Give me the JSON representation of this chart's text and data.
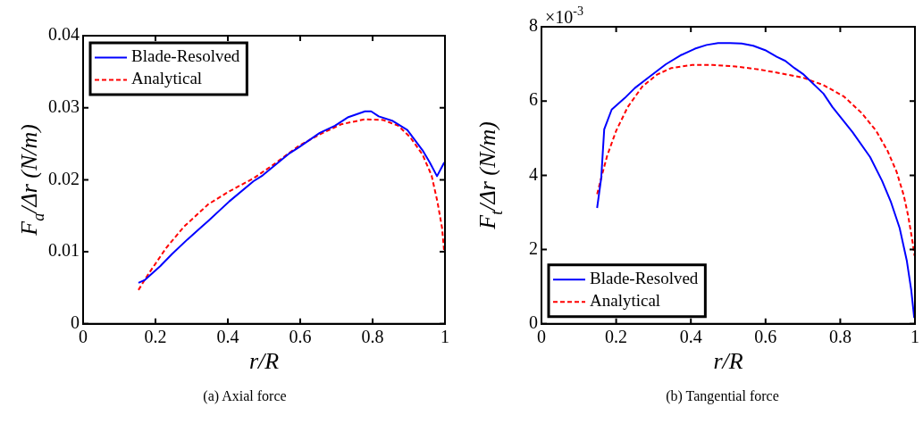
{
  "chart_data": [
    {
      "type": "line",
      "title": "(a) Axial force",
      "xlabel": "r/R",
      "ylabel": "F$_{a}$/Δr (N/m)",
      "xlim": [
        0,
        1
      ],
      "xticks": [
        0,
        0.2,
        0.4,
        0.6,
        0.8,
        1
      ],
      "ylim": [
        0,
        0.04
      ],
      "yticks": [
        0,
        0.01,
        0.02,
        0.03,
        0.04
      ],
      "grid": false,
      "legend": "top left",
      "series": [
        {
          "name": "Blade-Resolved",
          "color": "#0000ff",
          "line_style": "solid",
          "x": [
            0.153,
            0.171,
            0.213,
            0.246,
            0.288,
            0.346,
            0.404,
            0.471,
            0.496,
            0.571,
            0.596,
            0.654,
            0.696,
            0.733,
            0.779,
            0.796,
            0.817,
            0.854,
            0.896,
            0.938,
            0.958,
            0.978,
            0.998
          ],
          "values": [
            0.0057,
            0.0061,
            0.008,
            0.0097,
            0.0117,
            0.0143,
            0.017,
            0.0198,
            0.0206,
            0.0237,
            0.0245,
            0.0265,
            0.0275,
            0.0287,
            0.0295,
            0.0295,
            0.0288,
            0.0282,
            0.0269,
            0.0241,
            0.0224,
            0.0205,
            0.0224
          ]
        },
        {
          "name": "Analytical",
          "color": "#ff0000",
          "line_style": "dashed",
          "x": [
            0.153,
            0.179,
            0.229,
            0.279,
            0.346,
            0.404,
            0.471,
            0.529,
            0.596,
            0.654,
            0.713,
            0.779,
            0.829,
            0.871,
            0.904,
            0.938,
            0.963,
            0.979,
            0.992,
            0.998
          ],
          "values": [
            0.0047,
            0.0068,
            0.0105,
            0.0135,
            0.0166,
            0.0184,
            0.0202,
            0.0222,
            0.0247,
            0.0263,
            0.0277,
            0.0284,
            0.0283,
            0.0275,
            0.0259,
            0.0235,
            0.0206,
            0.017,
            0.0133,
            0.0099
          ]
        }
      ]
    },
    {
      "type": "line",
      "title": "(b) Tangential force",
      "xlabel": "r/R",
      "ylabel": "F$_{t}$/Δr (N/m)",
      "annotations": [
        "×10$^{-3}$"
      ],
      "xlim": [
        0,
        1
      ],
      "xticks": [
        0,
        0.2,
        0.4,
        0.6,
        0.8,
        1
      ],
      "ylim": [
        0,
        8
      ],
      "yticks": [
        0,
        2,
        4,
        6,
        8
      ],
      "grid": false,
      "legend": "bottom left",
      "series": [
        {
          "name": "Blade-Resolved",
          "color": "#0000ff",
          "line_style": "solid",
          "x": [
            0.149,
            0.16,
            0.168,
            0.188,
            0.223,
            0.25,
            0.286,
            0.333,
            0.372,
            0.411,
            0.442,
            0.473,
            0.505,
            0.536,
            0.567,
            0.599,
            0.63,
            0.653,
            0.677,
            0.7,
            0.755,
            0.779,
            0.833,
            0.88,
            0.912,
            0.935,
            0.959,
            0.978,
            0.99,
            0.998
          ],
          "values": [
            3.12,
            3.93,
            5.24,
            5.77,
            6.08,
            6.35,
            6.63,
            6.99,
            7.23,
            7.41,
            7.51,
            7.56,
            7.56,
            7.55,
            7.49,
            7.37,
            7.19,
            7.08,
            6.89,
            6.73,
            6.2,
            5.84,
            5.16,
            4.49,
            3.85,
            3.3,
            2.58,
            1.71,
            0.91,
            0.16
          ]
        },
        {
          "name": "Analytical",
          "color": "#ff0000",
          "line_style": "dashed",
          "x": [
            0.149,
            0.16,
            0.176,
            0.2,
            0.231,
            0.27,
            0.309,
            0.348,
            0.403,
            0.458,
            0.52,
            0.583,
            0.638,
            0.7,
            0.755,
            0.81,
            0.857,
            0.896,
            0.927,
            0.951,
            0.97,
            0.982,
            0.994,
            0.999
          ],
          "values": [
            3.49,
            3.93,
            4.53,
            5.2,
            5.84,
            6.39,
            6.71,
            6.89,
            6.97,
            6.97,
            6.93,
            6.85,
            6.75,
            6.63,
            6.43,
            6.12,
            5.68,
            5.2,
            4.65,
            4.09,
            3.46,
            2.9,
            2.18,
            1.83
          ]
        }
      ]
    }
  ]
}
